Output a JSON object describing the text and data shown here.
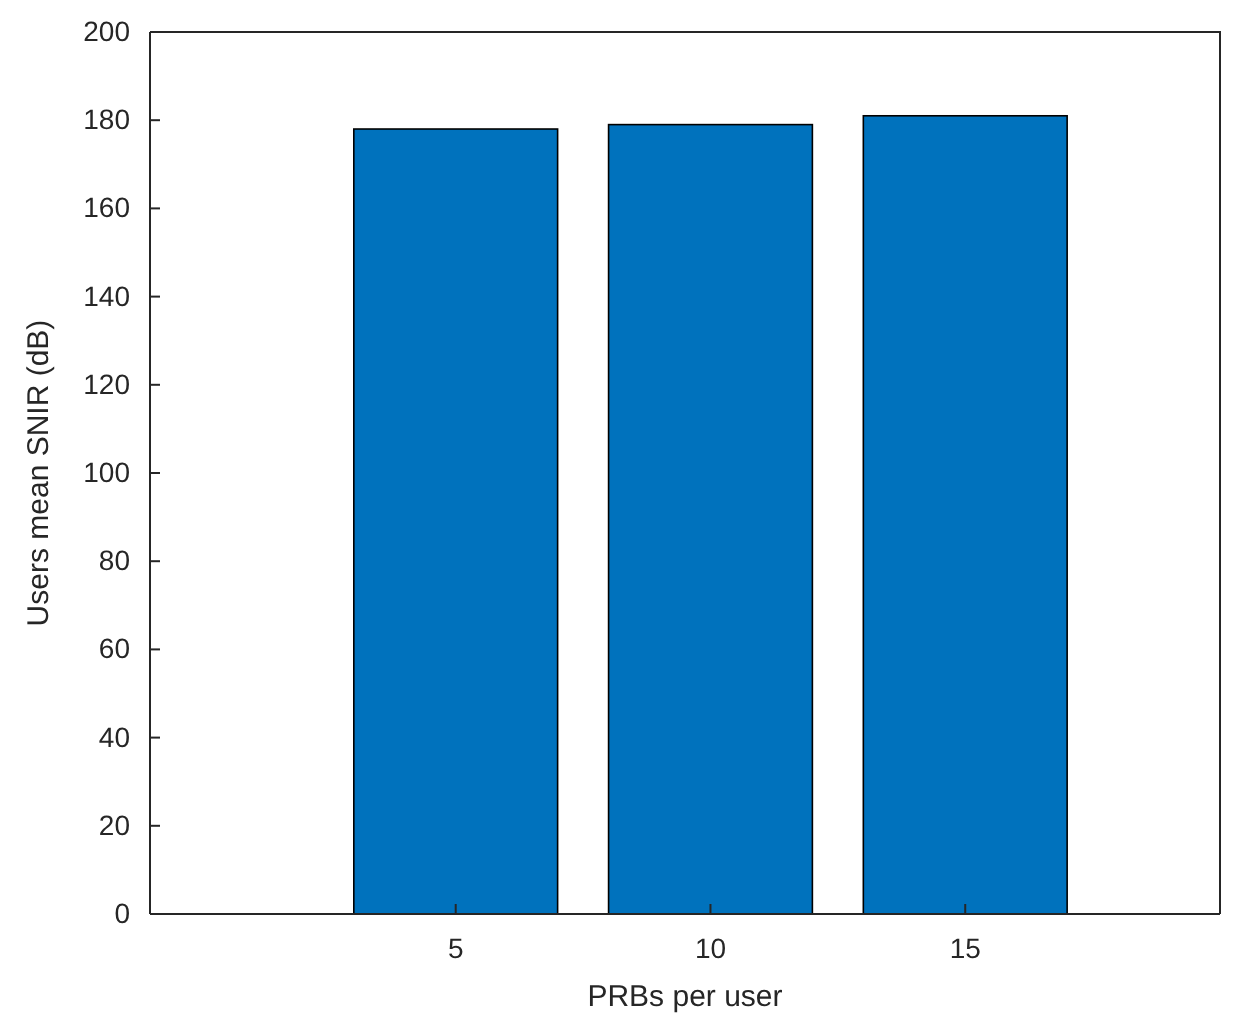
{
  "chart_data": {
    "type": "bar",
    "xlabel": "PRBs per user",
    "ylabel": "Users mean SNIR (dB)",
    "x": [
      5,
      10,
      15
    ],
    "values": [
      178,
      179,
      181
    ],
    "color": "#0072bd",
    "xlim": [
      -1,
      20
    ],
    "xticks": [
      5,
      10,
      15
    ],
    "ylim": [
      0,
      200
    ],
    "yticks": [
      0,
      20,
      40,
      60,
      80,
      100,
      120,
      140,
      160,
      180,
      200
    ],
    "grid": false
  }
}
